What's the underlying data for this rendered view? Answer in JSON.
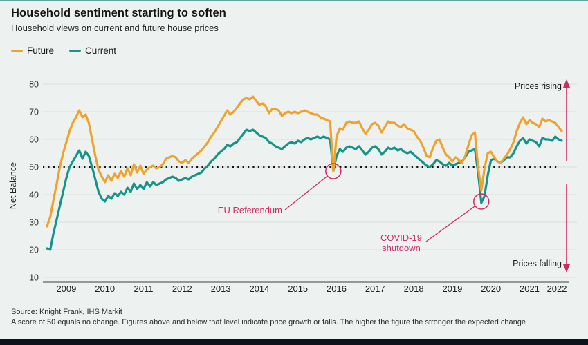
{
  "header": {
    "title": "Household sentiment starting to soften",
    "subtitle": "Household views on current and future house prices"
  },
  "legend": [
    {
      "label": "Future",
      "color": "#f0a22e"
    },
    {
      "label": "Current",
      "color": "#16948b"
    }
  ],
  "chart_data": {
    "type": "line",
    "title": "Household sentiment starting to soften",
    "subtitle": "Household views on current and future house prices",
    "ylabel": "Net Balance",
    "xlabel": "",
    "x_start": "2009-01",
    "x_end": "2022-05",
    "x_interval": "monthly",
    "ylim": [
      10,
      80
    ],
    "yticks": [
      10,
      20,
      30,
      40,
      50,
      60,
      70,
      80
    ],
    "xticks": [
      2009,
      2010,
      2011,
      2012,
      2013,
      2014,
      2015,
      2016,
      2017,
      2018,
      2019,
      2020,
      2021,
      2022
    ],
    "grid": "horizontal",
    "legend_position": "top-left",
    "reference_line": {
      "value": 50,
      "style": "dotted",
      "color": "#111111"
    },
    "accent_color": "#cf2b63",
    "series": [
      {
        "name": "Future",
        "color": "#f0a22e",
        "values": [
          28.5,
          32,
          38,
          44,
          50,
          55,
          59,
          63,
          66,
          68,
          70.5,
          68,
          69,
          66,
          60,
          54,
          49,
          46.5,
          44.5,
          47,
          45,
          47.5,
          46,
          48.5,
          46.5,
          49.5,
          47,
          51,
          48,
          50.5,
          47.5,
          49,
          50,
          50.5,
          49.5,
          50,
          51,
          53,
          53.5,
          54,
          53.5,
          52,
          51.5,
          52.5,
          51.5,
          53,
          54,
          55,
          56,
          57.5,
          59,
          61,
          62.5,
          64.5,
          66.5,
          68.5,
          70.5,
          69,
          70,
          71.5,
          73,
          74.5,
          75,
          74.5,
          75.5,
          74,
          72.5,
          73,
          72,
          69.5,
          71,
          71,
          70.5,
          68.5,
          69.5,
          70,
          69.5,
          70,
          69.5,
          70,
          70.5,
          70,
          69.5,
          69,
          69,
          68,
          67.5,
          67,
          66.5,
          48.5,
          61,
          64,
          63.5,
          66,
          66.5,
          66,
          66,
          66.5,
          64,
          62,
          63.5,
          65.5,
          66,
          65,
          62.5,
          64.5,
          66.5,
          66,
          66,
          65,
          64.5,
          65.5,
          64,
          63.5,
          63,
          61,
          59.5,
          57,
          54,
          53.5,
          57,
          59.5,
          60,
          57,
          54.5,
          53.5,
          52,
          53.5,
          52.5,
          51.5,
          54,
          58,
          61.5,
          62.5,
          50,
          41.5,
          49.5,
          55,
          55.5,
          53.5,
          52,
          51.5,
          53,
          54.5,
          56.5,
          59,
          63,
          66,
          68,
          65.5,
          67,
          66,
          65.5,
          64.5,
          67.5,
          66.5,
          67,
          66.5,
          66,
          64.5,
          63
        ]
      },
      {
        "name": "Current",
        "color": "#16948b",
        "values": [
          20.5,
          20,
          26,
          31,
          36,
          41,
          46,
          50,
          52,
          54,
          56,
          53,
          55.5,
          54,
          50,
          45.5,
          41,
          38.5,
          37.5,
          39.5,
          38.5,
          40.5,
          39.5,
          41,
          40,
          42.5,
          41,
          44,
          42,
          43.5,
          42,
          44.5,
          43,
          44.5,
          43.5,
          44,
          44.5,
          45.5,
          46,
          46.5,
          46,
          45,
          45.5,
          46,
          45.5,
          46.5,
          47,
          47.5,
          48,
          49.5,
          50.5,
          52,
          53,
          54.5,
          55.5,
          56.5,
          58,
          57.5,
          58.5,
          59,
          60.5,
          62,
          63.5,
          63,
          63.5,
          62.5,
          61.5,
          61,
          60.5,
          59,
          58.5,
          57.5,
          57,
          56.5,
          57.5,
          58.5,
          59,
          58.5,
          59.5,
          59,
          60,
          60.5,
          60,
          60.5,
          61,
          60.5,
          61,
          60.5,
          60,
          48.5,
          54,
          56.5,
          55.5,
          57,
          57.5,
          57,
          56.5,
          57.5,
          56,
          54.5,
          55.5,
          57,
          57.5,
          56.5,
          54.5,
          55.5,
          57,
          56.5,
          57,
          56,
          56.5,
          55.5,
          55,
          55.5,
          54.5,
          53.5,
          52.5,
          51.5,
          50.5,
          50,
          51,
          52.5,
          52,
          51,
          50.5,
          51.5,
          50.5,
          51,
          51.5,
          52,
          53.5,
          55.5,
          56,
          56.5,
          48,
          37,
          39.5,
          47,
          52.5,
          53,
          52,
          51.5,
          52.5,
          53.5,
          53.5,
          55,
          57.5,
          59.5,
          60.5,
          58.5,
          60,
          59.5,
          59,
          57.5,
          60.5,
          60,
          60,
          59.5,
          61,
          60,
          59.5
        ]
      }
    ],
    "annotations": [
      {
        "label": "EU Referendum",
        "month_index": 89,
        "value": 48.5,
        "color": "#cf2b63"
      },
      {
        "label_line1": "COVID-19",
        "label_line2": "shutdown",
        "month_index": 135,
        "value": 37,
        "color": "#cf2b63"
      }
    ],
    "direction_labels": {
      "rising": "Prices rising",
      "falling": "Prices falling"
    }
  },
  "source": {
    "line1": "Source: Knight Frank, IHS Markit",
    "line2": "A score of 50 equals no change. Figures above and below that level indicate price growth or falls. The higher the figure the stronger the expected change"
  }
}
